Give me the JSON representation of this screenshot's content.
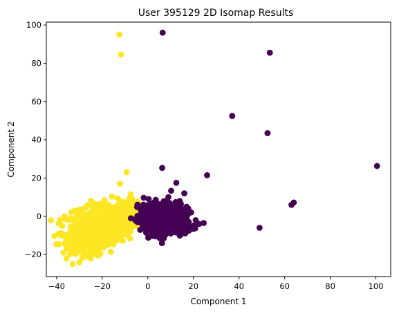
{
  "chart_data": {
    "type": "scatter",
    "title": "User 395129 2D Isomap Results",
    "xlabel": "Component 1",
    "ylabel": "Component 2",
    "xlim": [
      -44.5,
      106.5
    ],
    "ylim": [
      -31.5,
      101.5
    ],
    "xticks": [
      -40,
      -20,
      0,
      20,
      40,
      60,
      80,
      100
    ],
    "yticks": [
      -20,
      0,
      20,
      40,
      60,
      80,
      100
    ],
    "grid": false,
    "legend": "none",
    "series": [
      {
        "color": "#fde725",
        "clusters": [
          {
            "cx": -22,
            "cy": -6,
            "sx": 6.0,
            "sy": 4.5,
            "count": 850,
            "rot": 0.65
          },
          {
            "cx": -12,
            "cy": -1,
            "sx": 4.0,
            "sy": 3.0,
            "count": 350,
            "rot": 0.5
          },
          {
            "cx": -30,
            "cy": -13,
            "sx": 3.5,
            "sy": 4.0,
            "count": 180,
            "rot": 0.6
          },
          {
            "cx": -6,
            "cy": 1,
            "sx": 2.5,
            "sy": 2.5,
            "count": 120,
            "rot": 0.3
          }
        ],
        "points": [
          [
            -12.5,
            95
          ],
          [
            -11.8,
            84.5
          ],
          [
            -9.3,
            23
          ],
          [
            -12.2,
            17
          ],
          [
            -10.5,
            7.5
          ],
          [
            -7,
            7
          ],
          [
            -36.5,
            0
          ],
          [
            -37.5,
            -5
          ],
          [
            -38,
            -10
          ],
          [
            -37,
            -19
          ],
          [
            -33,
            -25
          ],
          [
            -30,
            -24
          ],
          [
            -27,
            -21
          ],
          [
            -34,
            -8
          ],
          [
            -35,
            -15
          ],
          [
            -32,
            3
          ],
          [
            -28,
            4
          ],
          [
            -21,
            6.5
          ],
          [
            -17,
            5.5
          ],
          [
            -5,
            3
          ],
          [
            -3,
            0.5
          ],
          [
            -25,
            -22
          ],
          [
            -35,
            -2
          ],
          [
            -29,
            -18
          ],
          [
            -24,
            2
          ],
          [
            -31,
            -4
          ],
          [
            -26,
            -16
          ],
          [
            -19,
            -15
          ],
          [
            -14,
            -10
          ],
          [
            -8,
            -6
          ]
        ]
      },
      {
        "color": "#440154",
        "clusters": [
          {
            "cx": 6,
            "cy": -1,
            "sx": 4.5,
            "sy": 3.5,
            "count": 900,
            "rot": 0.3
          },
          {
            "cx": 12,
            "cy": -5,
            "sx": 3.0,
            "sy": 2.0,
            "count": 250,
            "rot": -0.2
          },
          {
            "cx": 3,
            "cy": 3,
            "sx": 2.5,
            "sy": 2.0,
            "count": 150,
            "rot": 0.2
          }
        ],
        "points": [
          [
            6.5,
            96
          ],
          [
            53.5,
            85.5
          ],
          [
            37,
            52.5
          ],
          [
            52.5,
            43.5
          ],
          [
            100.5,
            26.3
          ],
          [
            6.3,
            25.3
          ],
          [
            26,
            21.5
          ],
          [
            63,
            6
          ],
          [
            64,
            7.2
          ],
          [
            49,
            -6
          ],
          [
            6.2,
            -14
          ],
          [
            12.5,
            17.5
          ],
          [
            16,
            12
          ],
          [
            9,
            10
          ],
          [
            24.5,
            -3.5
          ],
          [
            22.5,
            -4
          ],
          [
            20,
            -6.5
          ],
          [
            18,
            -7.5
          ],
          [
            15,
            -9
          ],
          [
            10,
            -9
          ],
          [
            -3,
            3
          ],
          [
            -4,
            -1
          ],
          [
            -2,
            -5
          ],
          [
            19,
            2
          ],
          [
            17,
            5
          ],
          [
            14,
            8
          ],
          [
            21,
            -2
          ],
          [
            1,
            -7
          ],
          [
            4,
            -9
          ],
          [
            8,
            7
          ]
        ]
      }
    ]
  }
}
